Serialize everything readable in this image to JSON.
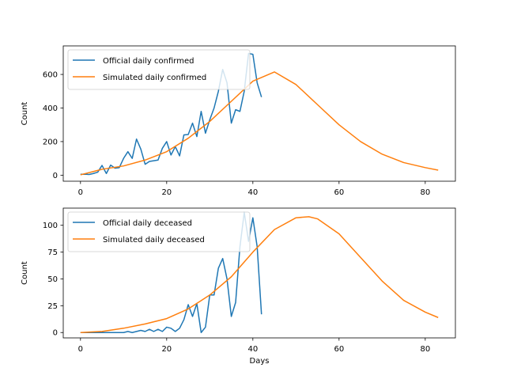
{
  "chart_data": [
    {
      "type": "line",
      "xlabel": "",
      "ylabel": "Count",
      "xlim": [
        -4,
        87
      ],
      "ylim": [
        -36,
        770
      ],
      "xticks": [
        0,
        20,
        40,
        60,
        80
      ],
      "yticks": [
        0,
        200,
        400,
        600
      ],
      "legend": "upper-left",
      "series": [
        {
          "name": "Official daily confirmed",
          "color": "#1f77b4",
          "x": [
            0,
            1,
            2,
            3,
            4,
            5,
            6,
            7,
            8,
            9,
            10,
            11,
            12,
            13,
            14,
            15,
            16,
            17,
            18,
            19,
            20,
            21,
            22,
            23,
            24,
            25,
            26,
            27,
            28,
            29,
            30,
            31,
            32,
            33,
            34,
            35,
            36,
            37,
            38,
            39,
            40,
            41,
            42
          ],
          "y": [
            5,
            6,
            4,
            10,
            18,
            58,
            10,
            60,
            42,
            45,
            100,
            140,
            100,
            215,
            155,
            65,
            82,
            86,
            90,
            160,
            200,
            120,
            170,
            115,
            240,
            242,
            310,
            230,
            380,
            250,
            330,
            400,
            500,
            630,
            550,
            310,
            390,
            380,
            500,
            725,
            720,
            550,
            465
          ]
        },
        {
          "name": "Simulated daily confirmed",
          "color": "#ff7f0e",
          "x": [
            0,
            5,
            10,
            15,
            20,
            25,
            30,
            35,
            40,
            45,
            50,
            55,
            60,
            65,
            70,
            75,
            80,
            83
          ],
          "y": [
            2,
            35,
            55,
            90,
            140,
            220,
            320,
            440,
            560,
            615,
            540,
            420,
            300,
            200,
            125,
            75,
            45,
            30
          ]
        }
      ]
    },
    {
      "type": "line",
      "xlabel": "Days",
      "ylabel": "Count",
      "xlim": [
        -4,
        87
      ],
      "ylim": [
        -5,
        116
      ],
      "xticks": [
        0,
        20,
        40,
        60,
        80
      ],
      "yticks": [
        0,
        25,
        50,
        75,
        100
      ],
      "legend": "upper-left",
      "series": [
        {
          "name": "Official daily deceased",
          "color": "#1f77b4",
          "x": [
            0,
            1,
            2,
            3,
            4,
            5,
            6,
            7,
            8,
            9,
            10,
            11,
            12,
            13,
            14,
            15,
            16,
            17,
            18,
            19,
            20,
            21,
            22,
            23,
            24,
            25,
            26,
            27,
            28,
            29,
            30,
            31,
            32,
            33,
            34,
            35,
            36,
            37,
            38,
            39,
            40,
            41,
            42
          ],
          "y": [
            0,
            0,
            0,
            0,
            0,
            0,
            0,
            0,
            0,
            0,
            0,
            1,
            0,
            1,
            2,
            1,
            3,
            1,
            3,
            1,
            5,
            4,
            1,
            4,
            12,
            26,
            15,
            27,
            0,
            5,
            35,
            35,
            60,
            69,
            50,
            15,
            28,
            80,
            112,
            85,
            107,
            80,
            17
          ]
        },
        {
          "name": "Simulated daily deceased",
          "color": "#ff7f0e",
          "x": [
            0,
            5,
            10,
            15,
            20,
            25,
            30,
            35,
            40,
            45,
            50,
            53,
            55,
            60,
            65,
            70,
            75,
            80,
            83
          ],
          "y": [
            0,
            1,
            4,
            8,
            13,
            22,
            35,
            52,
            75,
            96,
            107,
            108,
            106,
            92,
            70,
            48,
            30,
            19,
            14
          ]
        }
      ]
    }
  ]
}
